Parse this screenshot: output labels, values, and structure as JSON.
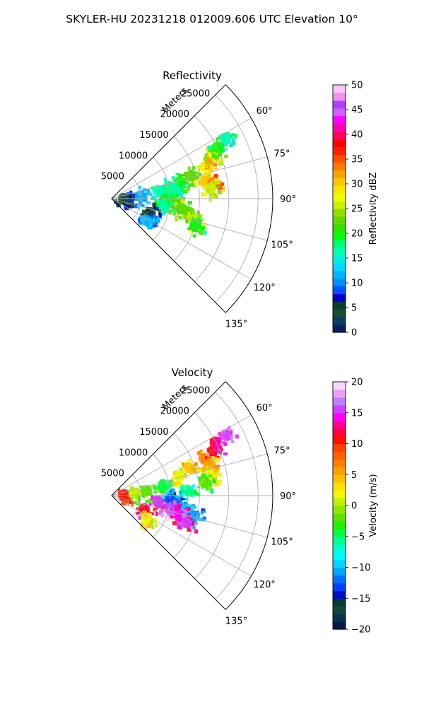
{
  "figure": {
    "title": "SKYLER-HU  20231218  012009.606 UTC Elevation 10°"
  },
  "chart_data": [
    {
      "type": "heatmap",
      "subtype": "polar-sector",
      "title": "Reflectivity",
      "radial_label": "Meters",
      "radial_ticks": [
        "5000",
        "10000",
        "15000",
        "20000",
        "25000"
      ],
      "radial_range": [
        0,
        27500
      ],
      "azimuth_range_deg": [
        45,
        135
      ],
      "angle_ticks": [
        "60°",
        "75°",
        "90°",
        "105°",
        "120°",
        "135°"
      ],
      "grid": true,
      "colorbar": {
        "label": "Reflectivity dBZ",
        "range": [
          0,
          50
        ],
        "ticks": [
          "0",
          "5",
          "10",
          "15",
          "20",
          "25",
          "30",
          "35",
          "40",
          "45",
          "50"
        ]
      },
      "cells": [
        {
          "az": 86,
          "r": 3000,
          "v": 8
        },
        {
          "az": 90,
          "r": 2000,
          "v": 4
        },
        {
          "az": 84,
          "r": 5000,
          "v": 12
        },
        {
          "az": 80,
          "r": 8000,
          "v": 16
        },
        {
          "az": 78,
          "r": 10000,
          "v": 18
        },
        {
          "az": 76,
          "r": 12000,
          "v": 20
        },
        {
          "az": 82,
          "r": 11000,
          "v": 17
        },
        {
          "az": 74,
          "r": 14000,
          "v": 22
        },
        {
          "az": 72,
          "r": 17000,
          "v": 28
        },
        {
          "az": 68,
          "r": 18000,
          "v": 32
        },
        {
          "az": 66,
          "r": 19000,
          "v": 27
        },
        {
          "az": 64,
          "r": 20000,
          "v": 20
        },
        {
          "az": 79,
          "r": 16000,
          "v": 30
        },
        {
          "az": 81,
          "r": 17500,
          "v": 34
        },
        {
          "az": 84,
          "r": 17000,
          "v": 26
        },
        {
          "az": 88,
          "r": 10000,
          "v": 18
        },
        {
          "az": 92,
          "r": 9000,
          "v": 20
        },
        {
          "az": 95,
          "r": 11000,
          "v": 22
        },
        {
          "az": 98,
          "r": 12000,
          "v": 23
        },
        {
          "az": 100,
          "r": 13500,
          "v": 22
        },
        {
          "az": 104,
          "r": 14500,
          "v": 25
        },
        {
          "az": 107,
          "r": 15000,
          "v": 20
        },
        {
          "az": 100,
          "r": 9000,
          "v": 17
        },
        {
          "az": 110,
          "r": 7000,
          "v": 5
        },
        {
          "az": 122,
          "r": 7000,
          "v": 11
        },
        {
          "az": 62,
          "r": 22000,
          "v": 16
        }
      ]
    },
    {
      "type": "heatmap",
      "subtype": "polar-sector",
      "title": "Velocity",
      "radial_label": "Meters",
      "radial_ticks": [
        "5000",
        "10000",
        "15000",
        "20000",
        "25000"
      ],
      "radial_range": [
        0,
        27500
      ],
      "azimuth_range_deg": [
        45,
        135
      ],
      "angle_ticks": [
        "60°",
        "75°",
        "90°",
        "105°",
        "120°",
        "135°"
      ],
      "grid": true,
      "colorbar": {
        "label": "Velocity (m/s)",
        "range": [
          -20,
          20
        ],
        "ticks": [
          "−20",
          "−15",
          "−10",
          "−5",
          "0",
          "5",
          "10",
          "15",
          "20"
        ]
      },
      "cells": [
        {
          "az": 84,
          "r": 4000,
          "v": 0
        },
        {
          "az": 86,
          "r": 2000,
          "v": 10
        },
        {
          "az": 82,
          "r": 6000,
          "v": -2
        },
        {
          "az": 78,
          "r": 9000,
          "v": -4
        },
        {
          "az": 74,
          "r": 12000,
          "v": 2
        },
        {
          "az": 70,
          "r": 14000,
          "v": 4
        },
        {
          "az": 68,
          "r": 17000,
          "v": 7
        },
        {
          "az": 66,
          "r": 19000,
          "v": 11
        },
        {
          "az": 64,
          "r": 20000,
          "v": 13
        },
        {
          "az": 72,
          "r": 17500,
          "v": 5
        },
        {
          "az": 78,
          "r": 17000,
          "v": 2
        },
        {
          "az": 82,
          "r": 16000,
          "v": -2
        },
        {
          "az": 86,
          "r": 13000,
          "v": -6
        },
        {
          "az": 90,
          "r": 10000,
          "v": -10
        },
        {
          "az": 94,
          "r": 10000,
          "v": -13
        },
        {
          "az": 97,
          "r": 11000,
          "v": -12
        },
        {
          "az": 100,
          "r": 13000,
          "v": -10
        },
        {
          "az": 104,
          "r": 14500,
          "v": -11
        },
        {
          "az": 98,
          "r": 8000,
          "v": 15
        },
        {
          "az": 102,
          "r": 10000,
          "v": 16
        },
        {
          "az": 106,
          "r": 12000,
          "v": 14
        },
        {
          "az": 110,
          "r": 13500,
          "v": 15
        },
        {
          "az": 112,
          "r": 6000,
          "v": 12
        },
        {
          "az": 123,
          "r": 7000,
          "v": 2
        },
        {
          "az": 62,
          "r": 22000,
          "v": 16
        }
      ]
    }
  ]
}
